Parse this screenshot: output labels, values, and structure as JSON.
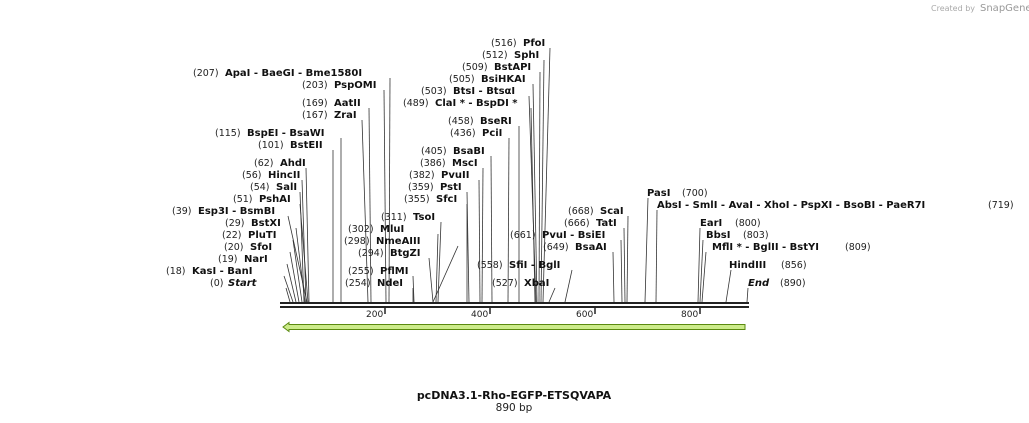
{
  "credit": {
    "prefix": "Created by",
    "brand": "SnapGene"
  },
  "map": {
    "title": "pcDNA3.1-Rho-EGFP-ETSQVAPA",
    "length_label": "890 bp"
  },
  "axis": {
    "ticks": [
      "200",
      "400",
      "600",
      "800"
    ]
  },
  "labels": [
    {
      "id": "start",
      "num": "(0)",
      "name": "Start",
      "italic": true
    },
    {
      "id": "kasi",
      "num": "(18)",
      "name": "KasI   - BanI"
    },
    {
      "id": "nari",
      "num": "(19)",
      "name": "NarI"
    },
    {
      "id": "sfoi",
      "num": "(20)",
      "name": "SfoI"
    },
    {
      "id": "pluti",
      "num": "(22)",
      "name": "PluTI"
    },
    {
      "id": "bstxi",
      "num": "(29)",
      "name": "BstXI"
    },
    {
      "id": "esp3i",
      "num": "(39)",
      "name": "Esp3I   - BsmBI"
    },
    {
      "id": "pshai",
      "num": "(51)",
      "name": "PshAI"
    },
    {
      "id": "sali",
      "num": "(54)",
      "name": "SalI"
    },
    {
      "id": "hincii",
      "num": "(56)",
      "name": "HincII"
    },
    {
      "id": "ahdi",
      "num": "(62)",
      "name": "AhdI"
    },
    {
      "id": "bsteii",
      "num": "(101)",
      "name": "BstEII"
    },
    {
      "id": "bspei",
      "num": "(115)",
      "name": "BspEI   - BsaWI"
    },
    {
      "id": "zrai",
      "num": "(167)",
      "name": "ZraI"
    },
    {
      "id": "aatii",
      "num": "(169)",
      "name": "AatII"
    },
    {
      "id": "pspomi",
      "num": "(203)",
      "name": "PspOMI"
    },
    {
      "id": "apai",
      "num": "(207)",
      "name": "ApaI   - BaeGI   - Bme1580I"
    },
    {
      "id": "ndei",
      "num": "(254)",
      "name": "NdeI"
    },
    {
      "id": "pflmi",
      "num": "(255)",
      "name": "PflMI"
    },
    {
      "id": "btgzi",
      "num": "(294)",
      "name": "BtgZI"
    },
    {
      "id": "nmeaiii",
      "num": "(298)",
      "name": "NmeAIII"
    },
    {
      "id": "mlui",
      "num": "(302)",
      "name": "MluI"
    },
    {
      "id": "tsoi",
      "num": "(311)",
      "name": "TsoI"
    },
    {
      "id": "sfci",
      "num": "(355)",
      "name": "SfcI"
    },
    {
      "id": "psti",
      "num": "(359)",
      "name": "PstI"
    },
    {
      "id": "pvuii",
      "num": "(382)",
      "name": "PvuII"
    },
    {
      "id": "msci",
      "num": "(386)",
      "name": "MscI"
    },
    {
      "id": "bsabi",
      "num": "(405)",
      "name": "BsaBI"
    },
    {
      "id": "pcii",
      "num": "(436)",
      "name": "PciI"
    },
    {
      "id": "bseri",
      "num": "(458)",
      "name": "BseRI"
    },
    {
      "id": "clai",
      "num": "(489)",
      "name": "ClaI *  - BspDI *"
    },
    {
      "id": "btsi",
      "num": "(503)",
      "name": "BtsI   - BtsαI"
    },
    {
      "id": "bsihkai",
      "num": "(505)",
      "name": "BsiHKAI"
    },
    {
      "id": "bstapi",
      "num": "(509)",
      "name": "BstAPI"
    },
    {
      "id": "sphi",
      "num": "(512)",
      "name": "SphI"
    },
    {
      "id": "pfoi",
      "num": "(516)",
      "name": "PfoI"
    },
    {
      "id": "xbai",
      "num": "(527)",
      "name": "XbaI"
    },
    {
      "id": "sfii",
      "num": "(558)",
      "name": "SfiI   - BglI"
    },
    {
      "id": "bsaai",
      "num": "(649)",
      "name": "BsaAI"
    },
    {
      "id": "pvui",
      "num": "(661)",
      "name": "PvuI   - BsiEI"
    },
    {
      "id": "tati",
      "num": "(666)",
      "name": "TatI"
    },
    {
      "id": "scai",
      "num": "(668)",
      "name": "ScaI"
    },
    {
      "id": "pasi",
      "num": "(700)",
      "name": "PasI"
    },
    {
      "id": "absi",
      "num": "(719)",
      "name": "AbsI   - SmlI   - AvaI   - XhoI   - PspXI   - BsoBI   - PaeR7I"
    },
    {
      "id": "eari",
      "num": "(800)",
      "name": "EarI"
    },
    {
      "id": "bbsi",
      "num": "(803)",
      "name": "BbsI"
    },
    {
      "id": "mflI",
      "num": "(809)",
      "name": "MflI *  - BglII   - BstYI"
    },
    {
      "id": "hindiii",
      "num": "(856)",
      "name": "HindIII"
    },
    {
      "id": "end",
      "num": "(890)",
      "name": "End",
      "italic": true
    }
  ],
  "colors": {
    "feature_fill": "#cceb8a",
    "feature_stroke": "#5a8a10",
    "backbone": "#222222"
  }
}
